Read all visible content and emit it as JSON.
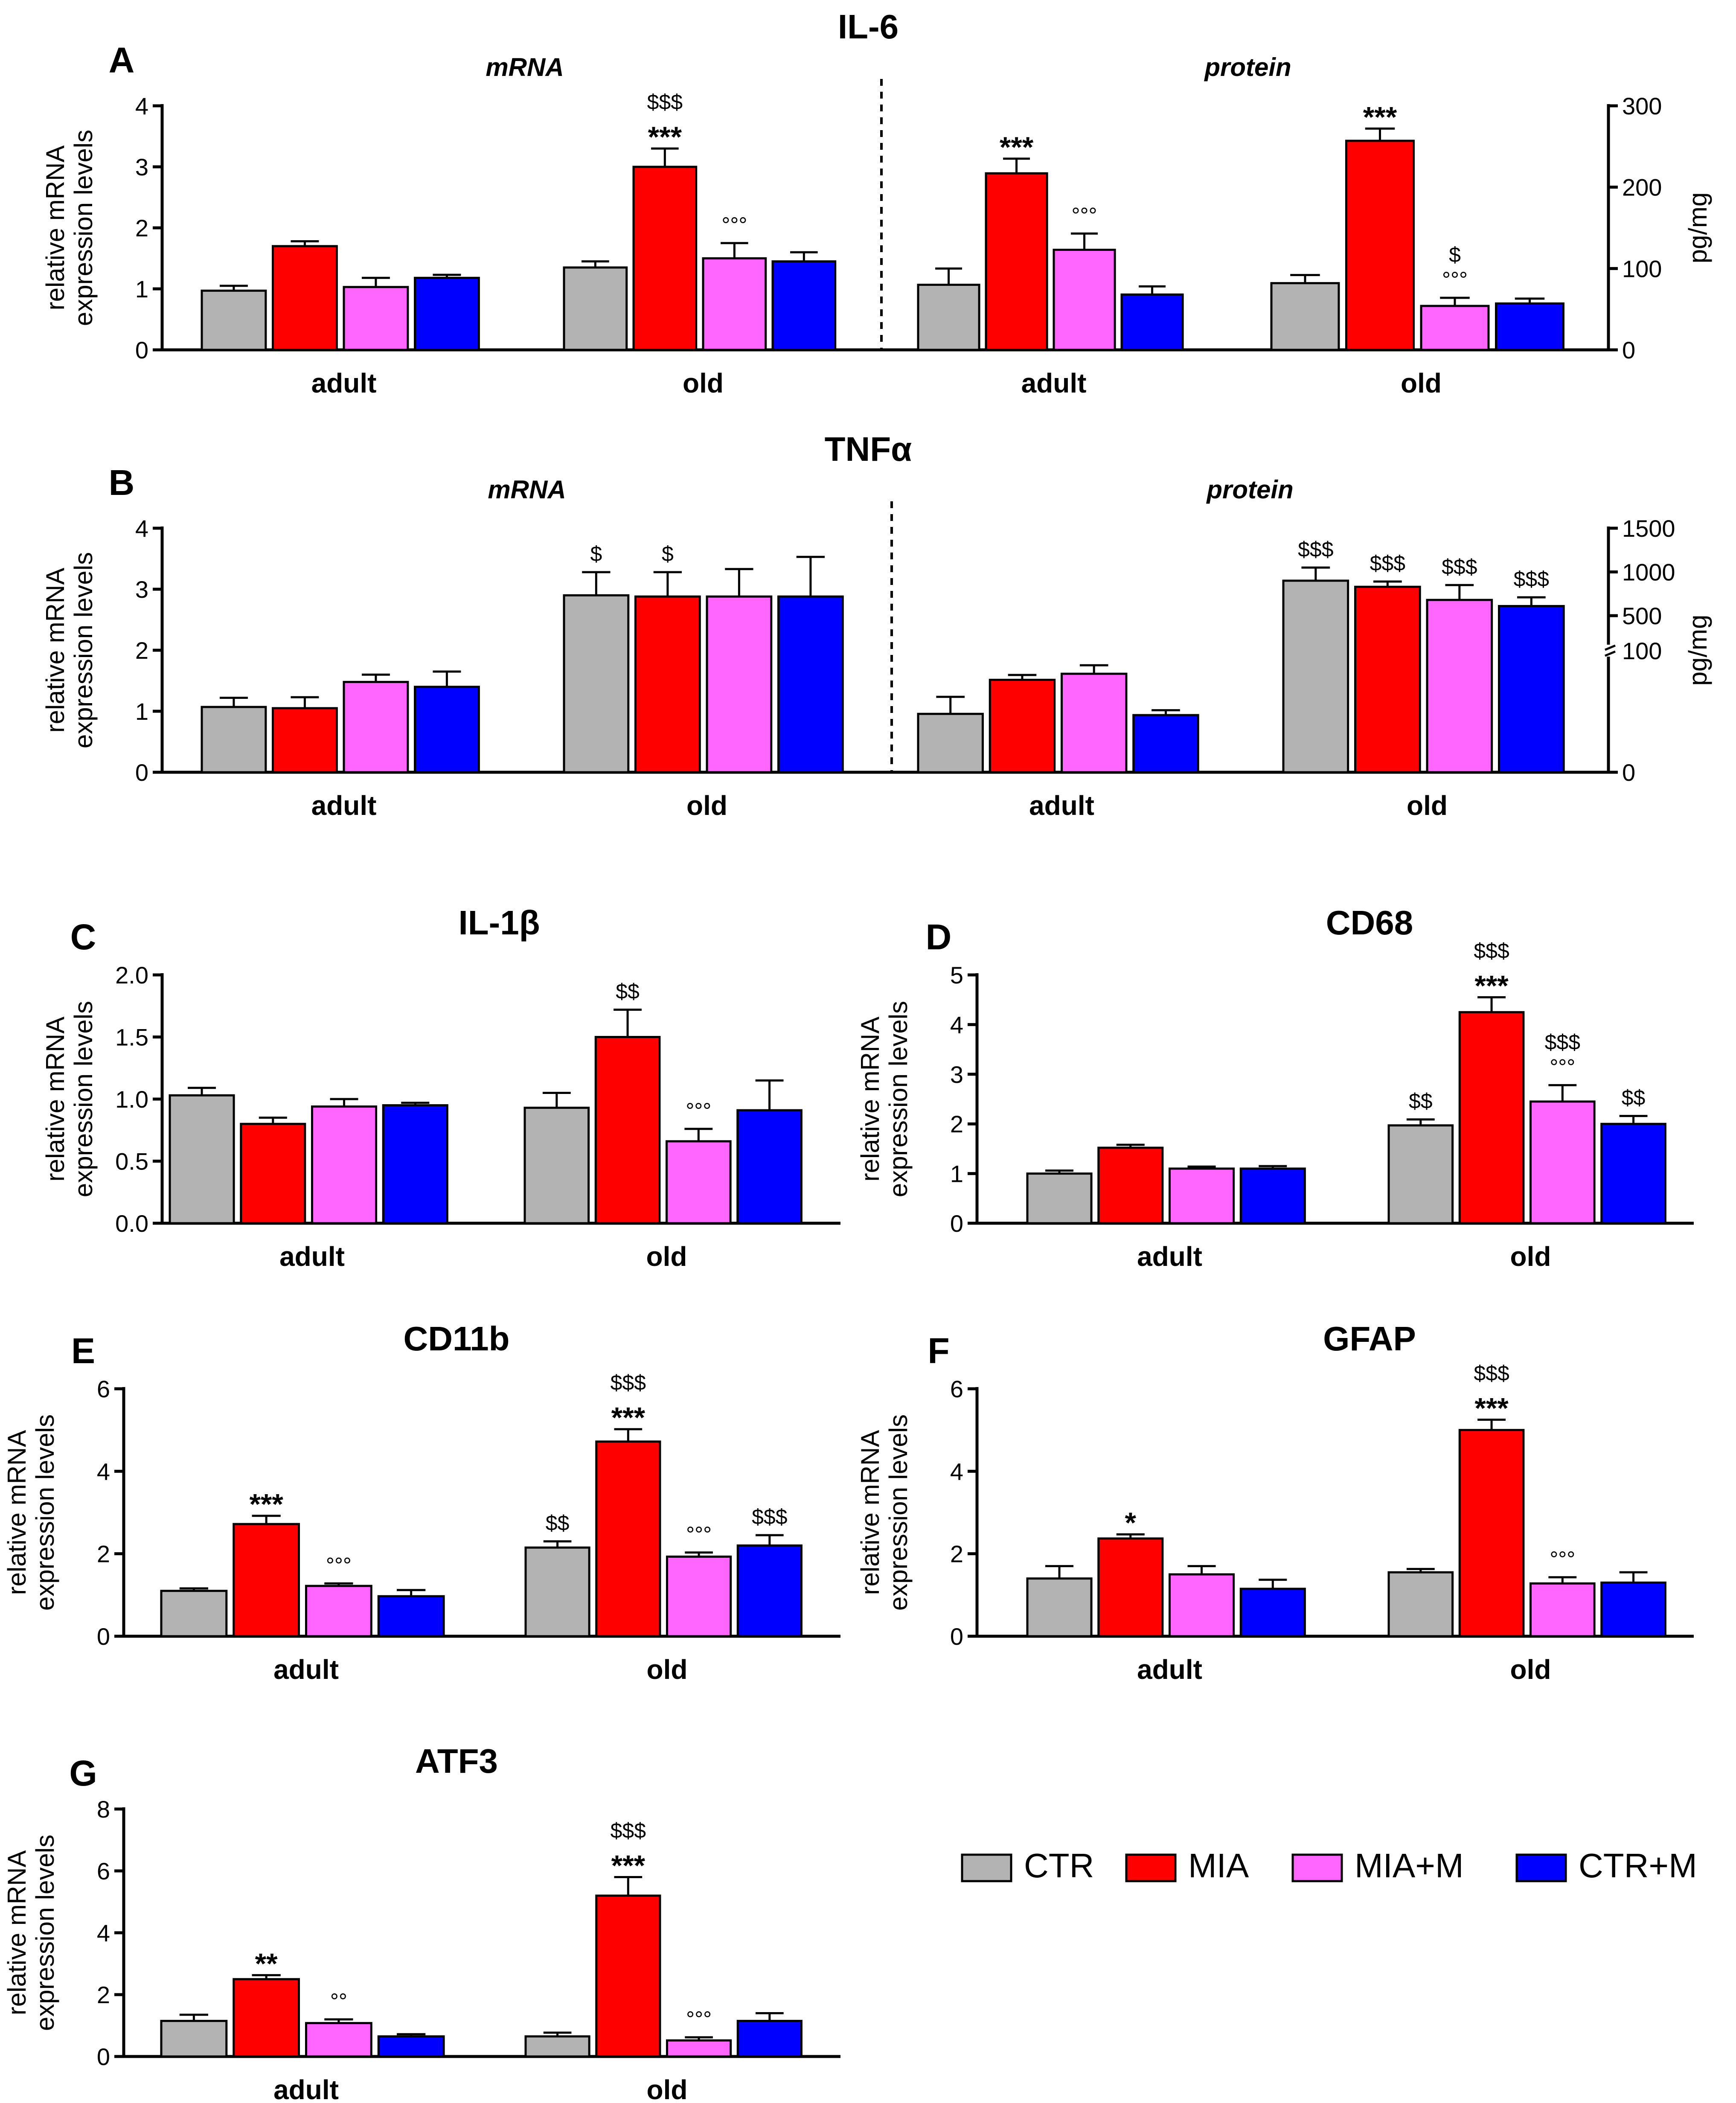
{
  "legend": [
    "CTR",
    "MIA",
    "MIA+M",
    "CTR+M"
  ],
  "colors": {
    "CTR": "#b3b3b3",
    "MIA": "#ff0000",
    "MIA+M": "#ff66ff",
    "CTR+M": "#0000ff"
  },
  "chart_data": [
    {
      "type": "bar",
      "panel": "A",
      "title": "IL-6",
      "subtitle": "mRNA",
      "categories": [
        "adult",
        "old"
      ],
      "ylabel": "relative mRNA\nexpression levels",
      "ylim": [
        0,
        4
      ],
      "yticks": [
        0,
        1,
        2,
        3,
        4
      ],
      "series": [
        {
          "name": "CTR",
          "values": [
            0.97,
            1.35
          ],
          "errors": [
            0.08,
            0.1
          ],
          "annotations": [
            "",
            ""
          ]
        },
        {
          "name": "MIA",
          "values": [
            1.7,
            3.0
          ],
          "errors": [
            0.08,
            0.3
          ],
          "annotations": [
            "",
            "$$$\n***"
          ]
        },
        {
          "name": "MIA+M",
          "values": [
            1.03,
            1.5
          ],
          "errors": [
            0.15,
            0.25
          ],
          "annotations": [
            "",
            "°°°"
          ]
        },
        {
          "name": "CTR+M",
          "values": [
            1.18,
            1.45
          ],
          "errors": [
            0.05,
            0.15
          ],
          "annotations": [
            "",
            ""
          ]
        }
      ]
    },
    {
      "type": "bar",
      "panel": "",
      "title": "",
      "subtitle": "protein",
      "categories": [
        "adult",
        "old"
      ],
      "ylabel": "pg/mg",
      "ylim": [
        0,
        300
      ],
      "yticks": [
        0,
        100,
        200,
        300
      ],
      "series": [
        {
          "name": "CTR",
          "values": [
            80,
            82
          ],
          "errors": [
            20,
            10
          ],
          "annotations": [
            "",
            ""
          ]
        },
        {
          "name": "MIA",
          "values": [
            217,
            257
          ],
          "errors": [
            18,
            15
          ],
          "annotations": [
            "***",
            "***"
          ]
        },
        {
          "name": "MIA+M",
          "values": [
            123,
            54
          ],
          "errors": [
            20,
            10
          ],
          "annotations": [
            "°°°",
            "$\n°°°"
          ]
        },
        {
          "name": "CTR+M",
          "values": [
            68,
            57
          ],
          "errors": [
            10,
            6
          ],
          "annotations": [
            "",
            ""
          ]
        }
      ]
    },
    {
      "type": "bar",
      "panel": "B",
      "title": "TNFα",
      "subtitle": "mRNA",
      "categories": [
        "adult",
        "old"
      ],
      "ylabel": "relative mRNA\nexpression levels",
      "ylim": [
        0,
        4
      ],
      "yticks": [
        0,
        1,
        2,
        3,
        4
      ],
      "series": [
        {
          "name": "CTR",
          "values": [
            1.07,
            2.9
          ],
          "errors": [
            0.15,
            0.38
          ],
          "annotations": [
            "",
            "$"
          ]
        },
        {
          "name": "MIA",
          "values": [
            1.05,
            2.88
          ],
          "errors": [
            0.18,
            0.4
          ],
          "annotations": [
            "",
            "$"
          ]
        },
        {
          "name": "MIA+M",
          "values": [
            1.48,
            2.88
          ],
          "errors": [
            0.12,
            0.45
          ],
          "annotations": [
            "",
            ""
          ]
        },
        {
          "name": "CTR+M",
          "values": [
            1.4,
            2.88
          ],
          "errors": [
            0.25,
            0.65
          ],
          "annotations": [
            "",
            ""
          ]
        }
      ]
    },
    {
      "type": "bar",
      "panel": "",
      "title": "",
      "subtitle": "protein",
      "categories": [
        "adult",
        "old"
      ],
      "ylabel": "pg/mg",
      "ylim": [
        0,
        1500
      ],
      "yticks": [
        0,
        100,
        500,
        1000,
        1500
      ],
      "axis_break": 100,
      "series": [
        {
          "name": "CTR",
          "values": [
            48,
            900
          ],
          "errors": [
            14,
            150
          ],
          "annotations": [
            "",
            "$$$"
          ]
        },
        {
          "name": "MIA",
          "values": [
            76,
            830
          ],
          "errors": [
            4,
            60
          ],
          "annotations": [
            "",
            "$$$"
          ]
        },
        {
          "name": "MIA+M",
          "values": [
            81,
            680
          ],
          "errors": [
            7,
            170
          ],
          "annotations": [
            "",
            "$$$"
          ]
        },
        {
          "name": "CTR+M",
          "values": [
            47,
            610
          ],
          "errors": [
            4,
            100
          ],
          "annotations": [
            "",
            "$$$"
          ]
        }
      ]
    },
    {
      "type": "bar",
      "panel": "C",
      "title": "IL-1β",
      "subtitle": "",
      "categories": [
        "adult",
        "old"
      ],
      "ylabel": "relative mRNA\nexpression levels",
      "ylim": [
        0,
        2.0
      ],
      "yticks": [
        "0.0",
        "0.5",
        "1.0",
        "1.5",
        "2.0"
      ],
      "series": [
        {
          "name": "CTR",
          "values": [
            1.03,
            0.93
          ],
          "errors": [
            0.06,
            0.12
          ],
          "annotations": [
            "",
            ""
          ]
        },
        {
          "name": "MIA",
          "values": [
            0.8,
            1.5
          ],
          "errors": [
            0.05,
            0.22
          ],
          "annotations": [
            "",
            "$$"
          ]
        },
        {
          "name": "MIA+M",
          "values": [
            0.94,
            0.66
          ],
          "errors": [
            0.06,
            0.1
          ],
          "annotations": [
            "",
            "°°°"
          ]
        },
        {
          "name": "CTR+M",
          "values": [
            0.95,
            0.91
          ],
          "errors": [
            0.02,
            0.24
          ],
          "annotations": [
            "",
            ""
          ]
        }
      ]
    },
    {
      "type": "bar",
      "panel": "D",
      "title": "CD68",
      "subtitle": "",
      "categories": [
        "adult",
        "old"
      ],
      "ylabel": "relative mRNA\nexpression levels",
      "ylim": [
        0,
        5
      ],
      "yticks": [
        0,
        1,
        2,
        3,
        4,
        5
      ],
      "series": [
        {
          "name": "CTR",
          "values": [
            1.0,
            1.97
          ],
          "errors": [
            0.06,
            0.12
          ],
          "annotations": [
            "",
            "$$"
          ]
        },
        {
          "name": "MIA",
          "values": [
            1.52,
            4.25
          ],
          "errors": [
            0.06,
            0.3
          ],
          "annotations": [
            "",
            "$$$\n***"
          ]
        },
        {
          "name": "MIA+M",
          "values": [
            1.1,
            2.45
          ],
          "errors": [
            0.04,
            0.33
          ],
          "annotations": [
            "",
            "$$$\n°°°"
          ]
        },
        {
          "name": "CTR+M",
          "values": [
            1.1,
            2.0
          ],
          "errors": [
            0.05,
            0.16
          ],
          "annotations": [
            "",
            "$$"
          ]
        }
      ]
    },
    {
      "type": "bar",
      "panel": "E",
      "title": "CD11b",
      "subtitle": "",
      "categories": [
        "adult",
        "old"
      ],
      "ylabel": "relative mRNA\nexpression levels",
      "ylim": [
        0,
        6
      ],
      "yticks": [
        0,
        2,
        4,
        6
      ],
      "series": [
        {
          "name": "CTR",
          "values": [
            1.1,
            2.15
          ],
          "errors": [
            0.06,
            0.15
          ],
          "annotations": [
            "",
            "$$"
          ]
        },
        {
          "name": "MIA",
          "values": [
            2.72,
            4.72
          ],
          "errors": [
            0.2,
            0.3
          ],
          "annotations": [
            "***",
            "$$$\n***"
          ]
        },
        {
          "name": "MIA+M",
          "values": [
            1.22,
            1.93
          ],
          "errors": [
            0.06,
            0.1
          ],
          "annotations": [
            "°°°",
            "°°°"
          ]
        },
        {
          "name": "CTR+M",
          "values": [
            0.97,
            2.2
          ],
          "errors": [
            0.15,
            0.25
          ],
          "annotations": [
            "",
            "$$$"
          ]
        }
      ]
    },
    {
      "type": "bar",
      "panel": "F",
      "title": "GFAP",
      "subtitle": "",
      "categories": [
        "adult",
        "old"
      ],
      "ylabel": "relative mRNA\nexpression levels",
      "ylim": [
        0,
        6
      ],
      "yticks": [
        0,
        2,
        4,
        6
      ],
      "series": [
        {
          "name": "CTR",
          "values": [
            1.4,
            1.55
          ],
          "errors": [
            0.3,
            0.08
          ],
          "annotations": [
            "",
            ""
          ]
        },
        {
          "name": "MIA",
          "values": [
            2.37,
            5.0
          ],
          "errors": [
            0.1,
            0.25
          ],
          "annotations": [
            "*",
            "$$$\n***"
          ]
        },
        {
          "name": "MIA+M",
          "values": [
            1.5,
            1.28
          ],
          "errors": [
            0.2,
            0.15
          ],
          "annotations": [
            "",
            "°°°"
          ]
        },
        {
          "name": "CTR+M",
          "values": [
            1.15,
            1.3
          ],
          "errors": [
            0.22,
            0.25
          ],
          "annotations": [
            "",
            ""
          ]
        }
      ]
    },
    {
      "type": "bar",
      "panel": "G",
      "title": "ATF3",
      "subtitle": "",
      "categories": [
        "adult",
        "old"
      ],
      "ylabel": "relative mRNA\nexpression levels",
      "ylim": [
        0,
        8
      ],
      "yticks": [
        0,
        2,
        4,
        6,
        8
      ],
      "series": [
        {
          "name": "CTR",
          "values": [
            1.15,
            0.65
          ],
          "errors": [
            0.2,
            0.12
          ],
          "annotations": [
            "",
            ""
          ]
        },
        {
          "name": "MIA",
          "values": [
            2.5,
            5.2
          ],
          "errors": [
            0.13,
            0.6
          ],
          "annotations": [
            "**",
            "$$$\n***"
          ]
        },
        {
          "name": "MIA+M",
          "values": [
            1.08,
            0.52
          ],
          "errors": [
            0.12,
            0.1
          ],
          "annotations": [
            "°°",
            "°°°"
          ]
        },
        {
          "name": "CTR+M",
          "values": [
            0.65,
            1.15
          ],
          "errors": [
            0.07,
            0.25
          ],
          "annotations": [
            "",
            ""
          ]
        }
      ]
    }
  ]
}
